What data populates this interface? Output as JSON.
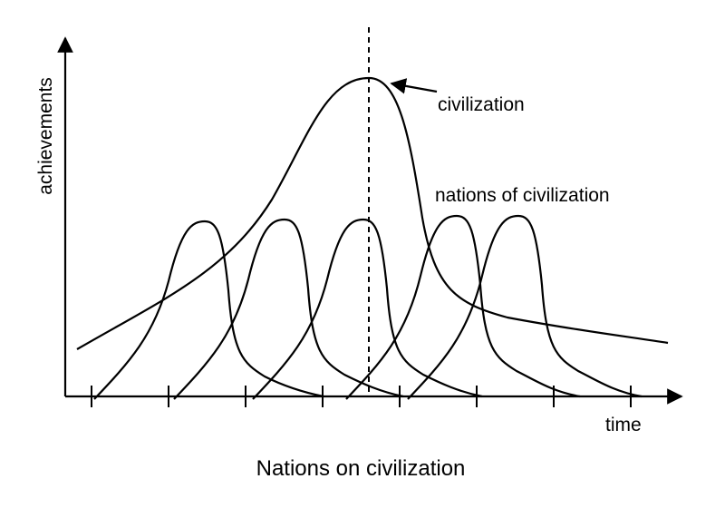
{
  "axes": {
    "y_label": "achievements",
    "x_label": "time"
  },
  "annotations": {
    "civilization": "civilization",
    "nations": "nations of civilization"
  },
  "caption": "Nations on civilization"
}
